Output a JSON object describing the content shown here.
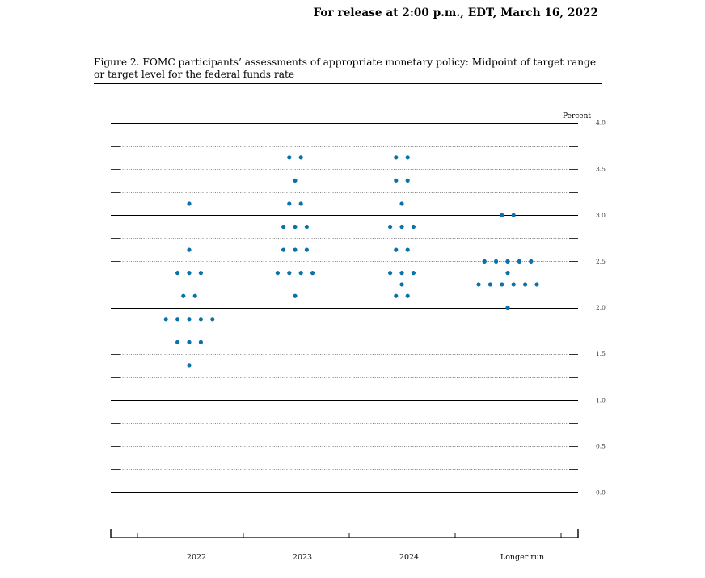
{
  "header": {
    "release": "For release at 2:00 p.m., EDT, March 16, 2022"
  },
  "figure": {
    "title": "Figure 2.  FOMC participants’ assessments of appropriate monetary policy:  Midpoint of target range or target level for the federal funds rate"
  },
  "colors": {
    "dot": "#0a72a8",
    "solid_grid": "#000000",
    "dotted_grid": "#555555"
  },
  "chart_data": {
    "type": "scatter",
    "ylabel": "Percent",
    "ylim": [
      0.0,
      4.0
    ],
    "y_ticks": [
      "4.0",
      "3.5",
      "3.0",
      "2.5",
      "2.0",
      "1.5",
      "1.0",
      "0.5",
      "0.0"
    ],
    "solid_grid_at": [
      4.0,
      3.0,
      2.0,
      1.0,
      0.0
    ],
    "grid_step": 0.25,
    "categories": [
      "2022",
      "2023",
      "2024",
      "Longer run"
    ],
    "series": [
      {
        "category": "2022",
        "points": [
          {
            "y": 3.125,
            "count": 1
          },
          {
            "y": 2.625,
            "count": 1
          },
          {
            "y": 2.375,
            "count": 3
          },
          {
            "y": 2.125,
            "count": 2
          },
          {
            "y": 1.875,
            "count": 5
          },
          {
            "y": 1.625,
            "count": 3
          },
          {
            "y": 1.375,
            "count": 1
          }
        ]
      },
      {
        "category": "2023",
        "points": [
          {
            "y": 3.625,
            "count": 2
          },
          {
            "y": 3.375,
            "count": 1
          },
          {
            "y": 3.125,
            "count": 2
          },
          {
            "y": 2.875,
            "count": 3
          },
          {
            "y": 2.625,
            "count": 3
          },
          {
            "y": 2.375,
            "count": 4
          },
          {
            "y": 2.125,
            "count": 1
          }
        ]
      },
      {
        "category": "2024",
        "points": [
          {
            "y": 3.625,
            "count": 2
          },
          {
            "y": 3.375,
            "count": 2
          },
          {
            "y": 3.125,
            "count": 1
          },
          {
            "y": 2.875,
            "count": 3
          },
          {
            "y": 2.625,
            "count": 2
          },
          {
            "y": 2.375,
            "count": 3
          },
          {
            "y": 2.25,
            "count": 1
          },
          {
            "y": 2.125,
            "count": 2
          }
        ]
      },
      {
        "category": "Longer run",
        "points": [
          {
            "y": 3.0,
            "count": 2
          },
          {
            "y": 2.5,
            "count": 5
          },
          {
            "y": 2.375,
            "count": 1
          },
          {
            "y": 2.25,
            "count": 6
          },
          {
            "y": 2.0,
            "count": 1
          }
        ]
      }
    ]
  }
}
